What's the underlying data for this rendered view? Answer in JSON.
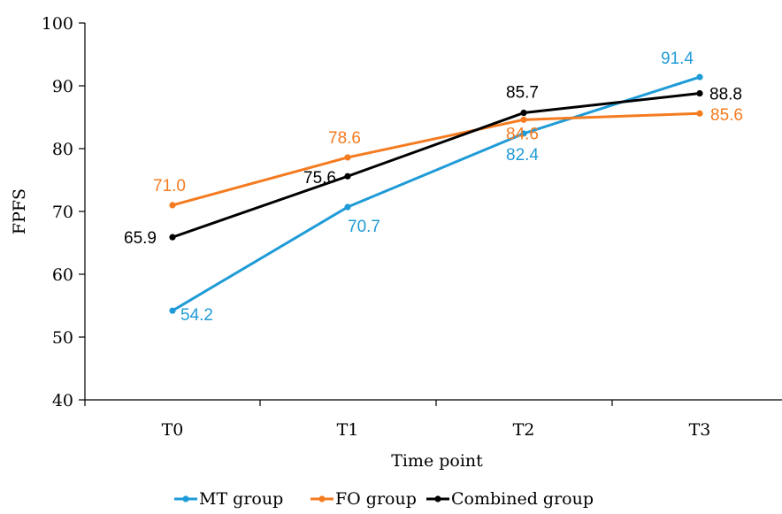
{
  "chart_data": {
    "type": "line",
    "xlabel": "Time point",
    "ylabel": "FPFS",
    "categories": [
      "T0",
      "T1",
      "T2",
      "T3"
    ],
    "ylim": [
      40,
      100
    ],
    "yticks": [
      "40",
      "50",
      "60",
      "70",
      "80",
      "90",
      "100"
    ],
    "grid": false,
    "legend_position": "bottom",
    "series": [
      {
        "name": "MT group",
        "color": "#1f9bd7",
        "values": [
          54.2,
          70.7,
          82.4,
          91.4
        ],
        "labels": [
          "54.2",
          "70.7",
          "82.4",
          "91.4"
        ]
      },
      {
        "name": "FO group",
        "color": "#f47b20",
        "values": [
          71.0,
          78.6,
          84.6,
          85.6
        ],
        "labels": [
          "71.0",
          "78.6",
          "84.6",
          "85.6"
        ]
      },
      {
        "name": "Combined group",
        "color": "#000000",
        "values": [
          65.9,
          75.6,
          85.7,
          88.8
        ],
        "labels": [
          "65.9",
          "75.6",
          "85.7",
          "88.8"
        ]
      }
    ]
  }
}
